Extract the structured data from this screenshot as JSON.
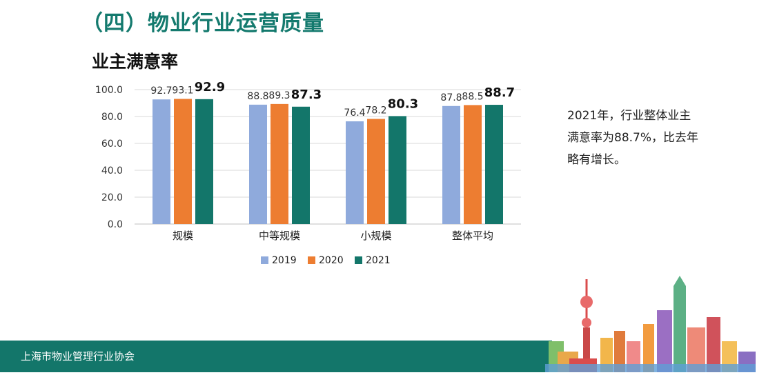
{
  "header": {
    "title": "（四）物业行业运营质量"
  },
  "colors": {
    "brand": "#147a6e",
    "series": [
      "#8faadc",
      "#ed7d31",
      "#13766a"
    ]
  },
  "chart_data": {
    "type": "bar",
    "title": "业主满意率",
    "categories": [
      "规模",
      "中等规模",
      "小规模",
      "整体平均"
    ],
    "series": [
      {
        "name": "2019",
        "values": [
          92.7,
          88.8,
          76.4,
          87.8
        ]
      },
      {
        "name": "2020",
        "values": [
          93.1,
          89.3,
          78.2,
          88.5
        ]
      },
      {
        "name": "2021",
        "values": [
          92.9,
          87.3,
          80.3,
          88.7
        ]
      }
    ],
    "ylim": [
      0,
      100
    ],
    "yticks": [
      "0.0",
      "20.0",
      "40.0",
      "60.0",
      "80.0",
      "100.0"
    ],
    "grid": true,
    "legend": "bottom",
    "emphasized_series": "2021"
  },
  "note": {
    "text": "2021年，行业整体业主满意率为88.7%，比去年略有增长。"
  },
  "footer": {
    "org": "上海市物业管理行业协会"
  }
}
